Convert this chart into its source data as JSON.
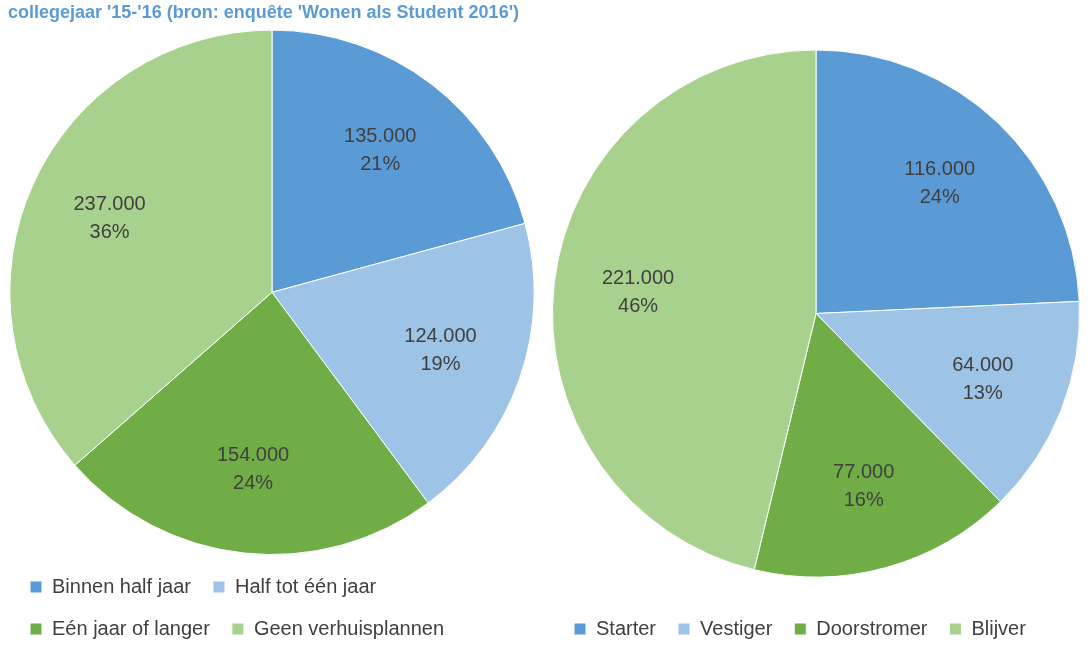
{
  "chart_data": [
    {
      "type": "pie",
      "title": "collegejaar '15-'16 (bron: enquête 'Wonen als Student 2016')",
      "categories": [
        "Binnen half jaar",
        "Half tot één jaar",
        "Eén jaar of langer",
        "Geen verhuisplannen"
      ],
      "values": [
        135000,
        124000,
        154000,
        237000
      ],
      "colors": [
        "#5b9bd5",
        "#9dc3e6",
        "#70ad47",
        "#a9d18e"
      ],
      "value_labels": [
        "135.000\n21%",
        "124.000\n19%",
        "154.000\n24%",
        "237.000\n36%"
      ],
      "legend": "bottom"
    },
    {
      "type": "pie",
      "categories": [
        "Starter",
        "Vestiger",
        "Doorstromer",
        "Blijver"
      ],
      "values": [
        116000,
        64000,
        77000,
        221000
      ],
      "colors": [
        "#5b9bd5",
        "#9dc3e6",
        "#70ad47",
        "#a9d18e"
      ],
      "value_labels": [
        "116.000\n24%",
        "64.000\n13%",
        "77.000\n16%",
        "221.000\n46%"
      ],
      "legend": "bottom"
    }
  ]
}
